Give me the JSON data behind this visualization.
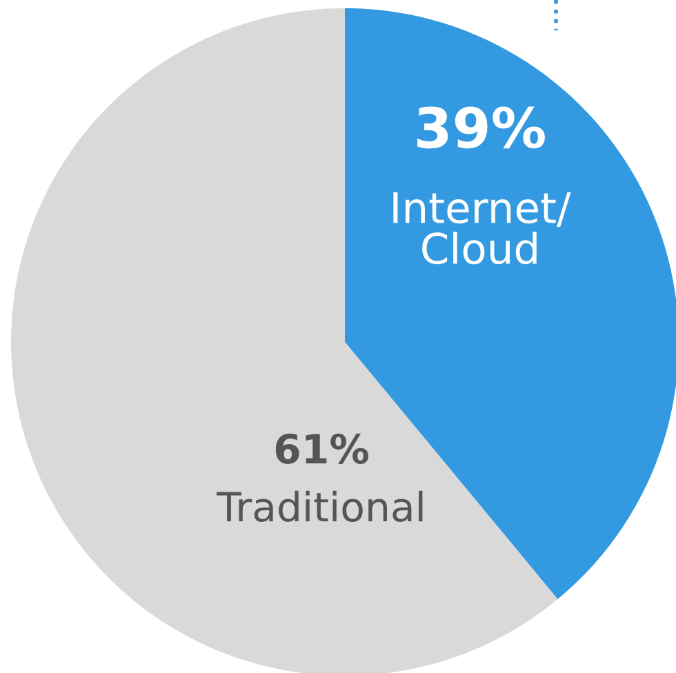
{
  "chart_data": {
    "type": "pie",
    "categories": [
      "Internet/\nCloud",
      "Traditional"
    ],
    "values": [
      39,
      61
    ],
    "value_labels": [
      "39%",
      "61%"
    ],
    "colors": [
      "#3399e0",
      "#d9d9d9"
    ],
    "legend": false
  }
}
